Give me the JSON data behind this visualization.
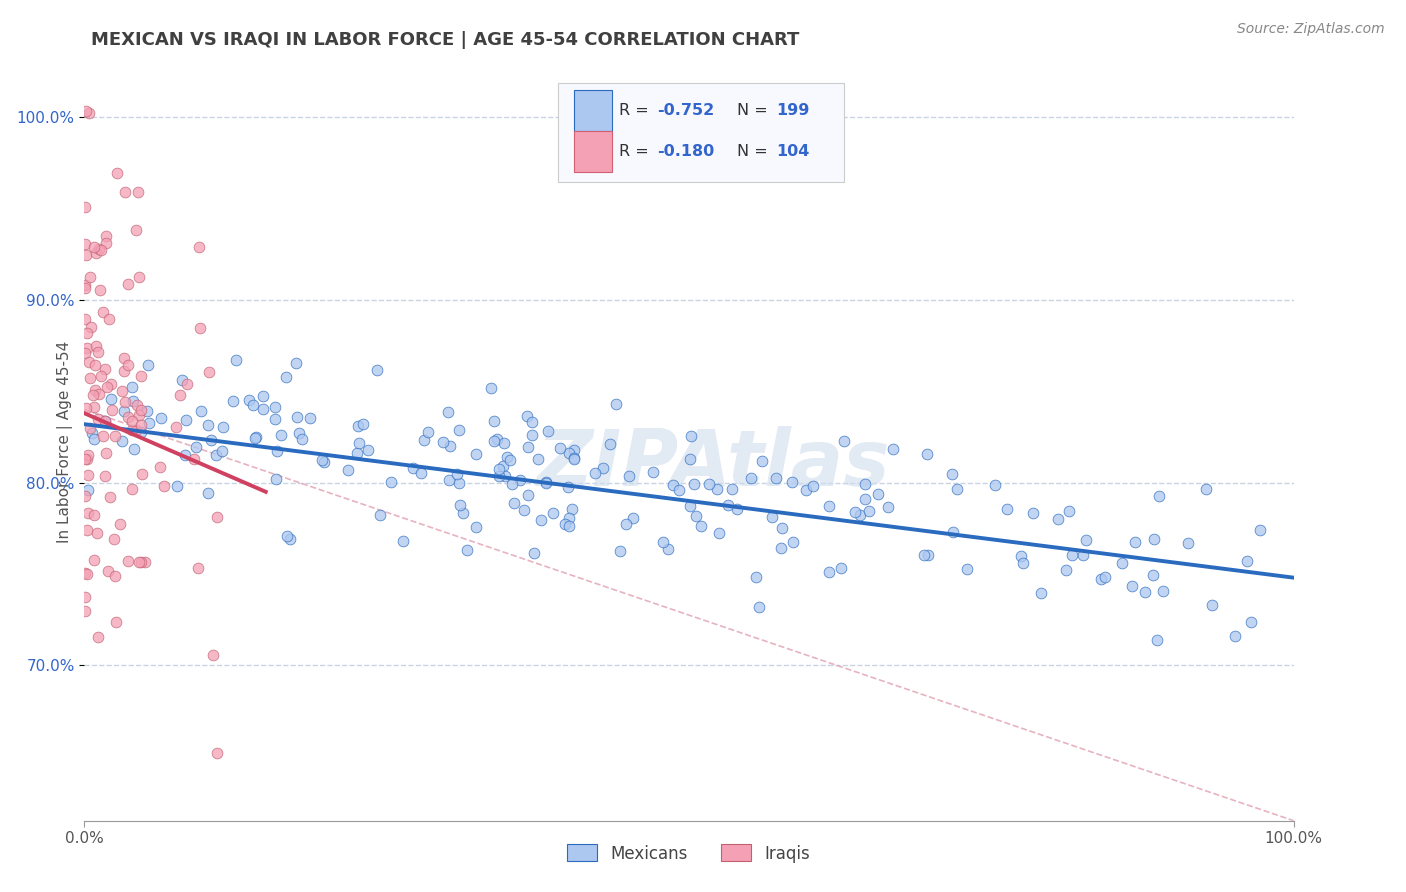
{
  "title": "MEXICAN VS IRAQI IN LABOR FORCE | AGE 45-54 CORRELATION CHART",
  "source": "Source: ZipAtlas.com",
  "ylabel": "In Labor Force | Age 45-54",
  "ytick_labels": [
    "70.0%",
    "80.0%",
    "90.0%",
    "100.0%"
  ],
  "ytick_values": [
    0.7,
    0.8,
    0.9,
    1.0
  ],
  "xlim": [
    0.0,
    1.0
  ],
  "ylim": [
    0.615,
    1.03
  ],
  "mexican_color": "#adc8f0",
  "iraqi_color": "#f4a0b5",
  "mexican_line_color": "#2a6bbf",
  "iraqi_line_color": "#d04060",
  "diagonal_color": "#e0a0b0",
  "background_color": "#ffffff",
  "grid_color": "#c8d4e4",
  "title_color": "#404040",
  "legend_text_color": "#333333",
  "legend_value_color": "#3366cc",
  "watermark_color": "#d0dced",
  "watermark_text": "ZIPAtlas",
  "mexican_R": -0.752,
  "iraqi_R": -0.18,
  "mexican_N": 199,
  "iraqi_N": 104,
  "mex_line_x0": 0.0,
  "mex_line_y0": 0.832,
  "mex_line_x1": 1.0,
  "mex_line_y1": 0.748,
  "iraq_line_x0": 0.0,
  "iraq_line_y0": 0.838,
  "iraq_line_x1": 0.15,
  "iraq_line_y1": 0.795
}
